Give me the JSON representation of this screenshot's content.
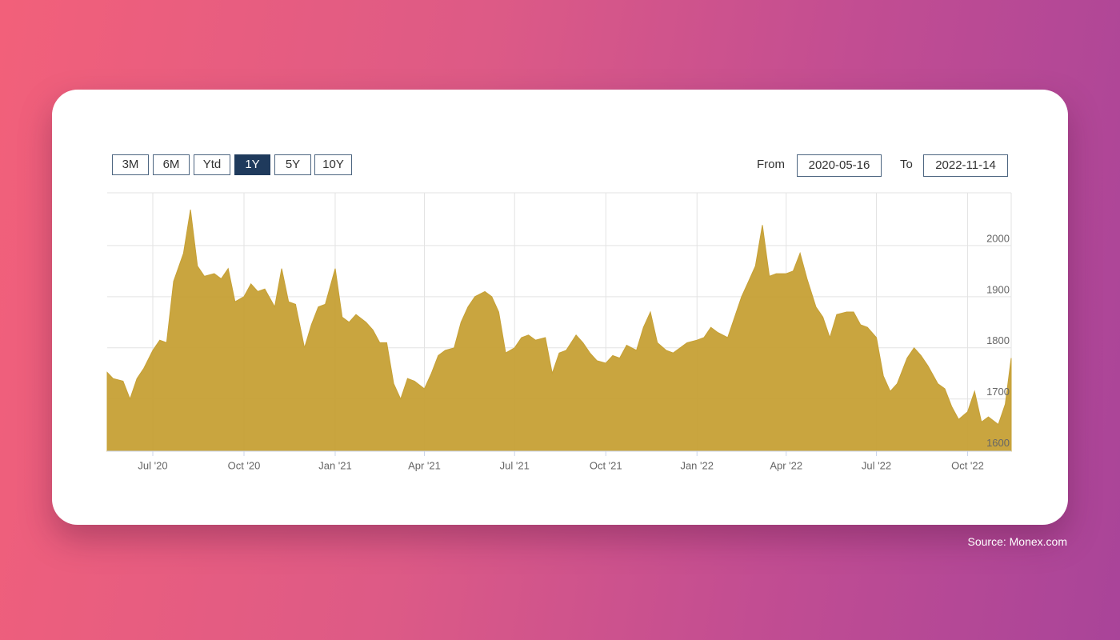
{
  "controls": {
    "range_buttons": [
      {
        "label": "3M",
        "active": false
      },
      {
        "label": "6M",
        "active": false
      },
      {
        "label": "Ytd",
        "active": false
      },
      {
        "label": "1Y",
        "active": true
      },
      {
        "label": "5Y",
        "active": false
      },
      {
        "label": "10Y",
        "active": false
      }
    ],
    "from_label": "From",
    "to_label": "To"
  },
  "source": "Source: Monex.com",
  "chart_data": {
    "type": "area",
    "color": "#c6a035",
    "grid": true,
    "xlim": [
      "2020-05-16",
      "2022-11-14"
    ],
    "xticks": [
      {
        "value": "2020-07-01",
        "label": "Jul '20"
      },
      {
        "value": "2020-10-01",
        "label": "Oct '20"
      },
      {
        "value": "2021-01-01",
        "label": "Jan '21"
      },
      {
        "value": "2021-04-01",
        "label": "Apr '21"
      },
      {
        "value": "2021-07-01",
        "label": "Jul '21"
      },
      {
        "value": "2021-10-01",
        "label": "Oct '21"
      },
      {
        "value": "2022-01-01",
        "label": "Jan '22"
      },
      {
        "value": "2022-04-01",
        "label": "Apr '22"
      },
      {
        "value": "2022-07-01",
        "label": "Jul '22"
      },
      {
        "value": "2022-10-01",
        "label": "Oct '22"
      }
    ],
    "ylim": [
      1598,
      2103
    ],
    "yticks": [
      1600,
      1700,
      1800,
      1900,
      2000
    ],
    "x": [
      "2020-05-16",
      "2020-05-22",
      "2020-06-01",
      "2020-06-08",
      "2020-06-15",
      "2020-06-22",
      "2020-07-01",
      "2020-07-08",
      "2020-07-15",
      "2020-07-22",
      "2020-08-01",
      "2020-08-08",
      "2020-08-15",
      "2020-08-22",
      "2020-09-01",
      "2020-09-08",
      "2020-09-15",
      "2020-09-22",
      "2020-10-01",
      "2020-10-08",
      "2020-10-15",
      "2020-10-22",
      "2020-11-01",
      "2020-11-08",
      "2020-11-15",
      "2020-11-22",
      "2020-12-01",
      "2020-12-08",
      "2020-12-15",
      "2020-12-22",
      "2021-01-01",
      "2021-01-08",
      "2021-01-15",
      "2021-01-22",
      "2021-02-01",
      "2021-02-08",
      "2021-02-15",
      "2021-02-22",
      "2021-03-01",
      "2021-03-08",
      "2021-03-15",
      "2021-03-22",
      "2021-04-01",
      "2021-04-08",
      "2021-04-15",
      "2021-04-22",
      "2021-05-01",
      "2021-05-08",
      "2021-05-15",
      "2021-05-22",
      "2021-06-01",
      "2021-06-08",
      "2021-06-15",
      "2021-06-22",
      "2021-07-01",
      "2021-07-08",
      "2021-07-15",
      "2021-07-22",
      "2021-08-01",
      "2021-08-08",
      "2021-08-15",
      "2021-08-22",
      "2021-09-01",
      "2021-09-08",
      "2021-09-15",
      "2021-09-22",
      "2021-10-01",
      "2021-10-08",
      "2021-10-15",
      "2021-10-22",
      "2021-11-01",
      "2021-11-08",
      "2021-11-15",
      "2021-11-22",
      "2021-12-01",
      "2021-12-08",
      "2021-12-15",
      "2021-12-22",
      "2022-01-01",
      "2022-01-08",
      "2022-01-15",
      "2022-01-22",
      "2022-02-01",
      "2022-02-08",
      "2022-02-15",
      "2022-02-22",
      "2022-03-01",
      "2022-03-08",
      "2022-03-15",
      "2022-03-22",
      "2022-04-01",
      "2022-04-08",
      "2022-04-15",
      "2022-04-22",
      "2022-05-01",
      "2022-05-08",
      "2022-05-15",
      "2022-05-22",
      "2022-06-01",
      "2022-06-08",
      "2022-06-15",
      "2022-06-22",
      "2022-07-01",
      "2022-07-08",
      "2022-07-15",
      "2022-07-22",
      "2022-08-01",
      "2022-08-08",
      "2022-08-15",
      "2022-08-22",
      "2022-09-01",
      "2022-09-08",
      "2022-09-15",
      "2022-09-22",
      "2022-10-01",
      "2022-10-08",
      "2022-10-15",
      "2022-10-22",
      "2022-11-01",
      "2022-11-08",
      "2022-11-14"
    ],
    "values": [
      1752,
      1740,
      1735,
      1700,
      1740,
      1760,
      1795,
      1815,
      1810,
      1930,
      1985,
      2070,
      1960,
      1940,
      1945,
      1935,
      1955,
      1890,
      1900,
      1925,
      1910,
      1915,
      1880,
      1955,
      1890,
      1885,
      1800,
      1845,
      1880,
      1885,
      1955,
      1860,
      1850,
      1865,
      1850,
      1835,
      1810,
      1810,
      1730,
      1700,
      1740,
      1735,
      1720,
      1750,
      1785,
      1795,
      1800,
      1850,
      1880,
      1900,
      1910,
      1900,
      1870,
      1790,
      1800,
      1820,
      1825,
      1815,
      1820,
      1750,
      1790,
      1795,
      1825,
      1810,
      1790,
      1775,
      1770,
      1785,
      1780,
      1805,
      1795,
      1840,
      1870,
      1810,
      1795,
      1790,
      1800,
      1810,
      1815,
      1820,
      1840,
      1830,
      1820,
      1860,
      1900,
      1930,
      1960,
      2040,
      1940,
      1945,
      1945,
      1950,
      1985,
      1935,
      1880,
      1860,
      1820,
      1865,
      1870,
      1870,
      1845,
      1840,
      1820,
      1745,
      1715,
      1730,
      1780,
      1800,
      1785,
      1765,
      1730,
      1720,
      1685,
      1660,
      1675,
      1715,
      1655,
      1665,
      1650,
      1690,
      1780
    ]
  }
}
